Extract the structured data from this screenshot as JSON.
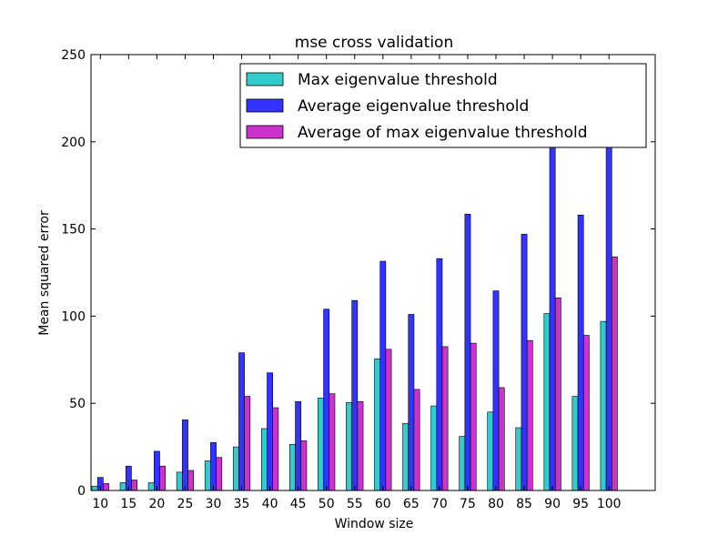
{
  "chart_data": {
    "type": "bar",
    "title": "mse cross validation",
    "xlabel": "Window size",
    "ylabel": "Mean squared error",
    "ylim": [
      0,
      250
    ],
    "yticks": [
      0,
      50,
      100,
      150,
      200,
      250
    ],
    "categories": [
      "10",
      "15",
      "20",
      "25",
      "30",
      "35",
      "40",
      "45",
      "50",
      "55",
      "60",
      "65",
      "70",
      "75",
      "80",
      "85",
      "90",
      "95",
      "100"
    ],
    "series": [
      {
        "name": "Max eigenvalue threshold",
        "color": "#33cccc",
        "values": [
          2.5,
          4.5,
          4.5,
          10.5,
          17,
          25,
          35.5,
          26.5,
          53,
          50.5,
          75.5,
          38.5,
          48.5,
          31,
          45,
          36,
          101.5,
          54,
          97
        ]
      },
      {
        "name": "Average eigenvalue threshold",
        "color": "#3333ff",
        "values": [
          7.5,
          14,
          22.5,
          40.5,
          27.5,
          79,
          67.5,
          51,
          104,
          109,
          131.5,
          101,
          133,
          158.5,
          114.5,
          147,
          200,
          158,
          200
        ]
      },
      {
        "name": "Average of max eigenvalue threshold",
        "color": "#cc33cc",
        "values": [
          4,
          6,
          14,
          11.5,
          19,
          54,
          47.5,
          28.5,
          55.5,
          51,
          81,
          58,
          82.5,
          84.5,
          59,
          86,
          110.5,
          89,
          134
        ]
      }
    ],
    "legend_position": "top-right",
    "grid": false
  }
}
